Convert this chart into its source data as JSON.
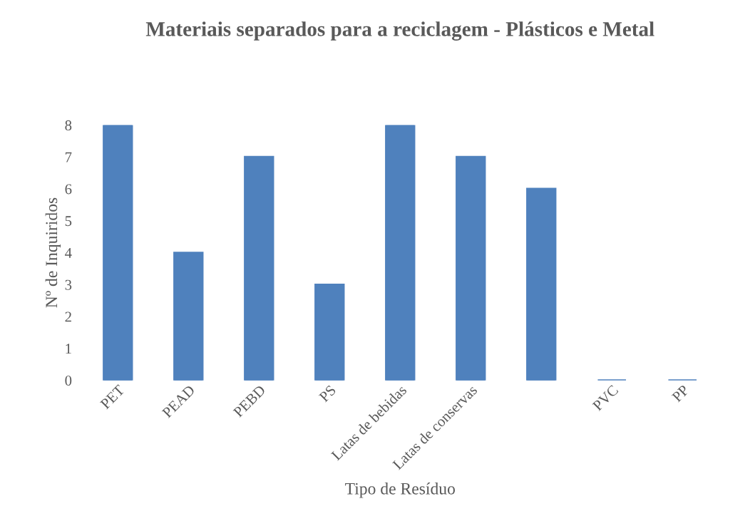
{
  "chart_data": {
    "type": "bar",
    "title": "Materiais separados para a reciclagem - Plásticos e Metal",
    "xlabel": "Tipo de Resíduo",
    "ylabel": "Nº de Inquiridos",
    "categories": [
      "PET",
      "PEAD",
      "PEBD",
      "PS",
      "Latas de bebidas",
      "Latas de conservas",
      null,
      "PVC",
      "PP"
    ],
    "values": [
      8,
      4,
      7,
      3,
      8,
      7,
      6,
      0,
      0
    ],
    "color": "#4f81bd",
    "ylim": [
      0,
      8
    ],
    "yticks": [
      0,
      1,
      2,
      3,
      4,
      5,
      6,
      7,
      8
    ],
    "grid": false,
    "legend": false
  }
}
